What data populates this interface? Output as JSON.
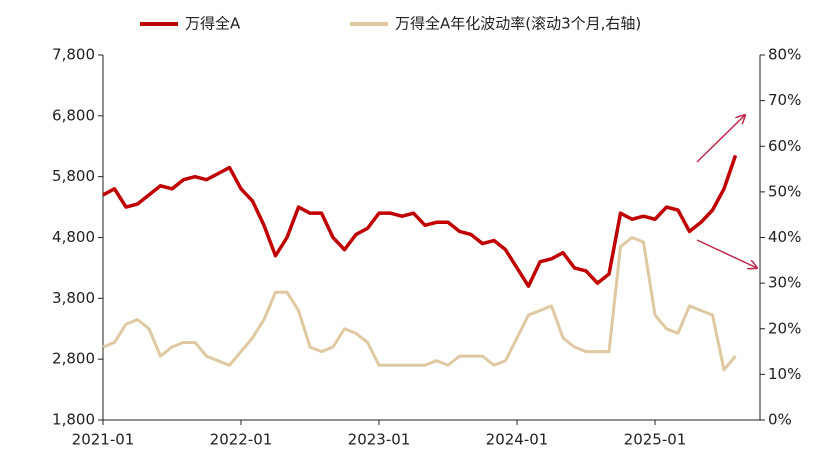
{
  "chart_data": {
    "type": "line",
    "x": [
      "2021-01",
      "2021-02",
      "2021-03",
      "2021-04",
      "2021-05",
      "2021-06",
      "2021-07",
      "2021-08",
      "2021-09",
      "2021-10",
      "2021-11",
      "2021-12",
      "2022-01",
      "2022-02",
      "2022-03",
      "2022-04",
      "2022-05",
      "2022-06",
      "2022-07",
      "2022-08",
      "2022-09",
      "2022-10",
      "2022-11",
      "2022-12",
      "2023-01",
      "2023-02",
      "2023-03",
      "2023-04",
      "2023-05",
      "2023-06",
      "2023-07",
      "2023-08",
      "2023-09",
      "2023-10",
      "2023-11",
      "2023-12",
      "2024-01",
      "2024-02",
      "2024-03",
      "2024-04",
      "2024-05",
      "2024-06",
      "2024-07",
      "2024-08",
      "2024-09",
      "2024-10",
      "2024-11",
      "2024-12",
      "2025-01",
      "2025-02",
      "2025-03",
      "2025-04",
      "2025-05",
      "2025-06",
      "2025-07",
      "2025-08"
    ],
    "series": [
      {
        "name": "万得全A",
        "color": "#c00000",
        "axis": "y",
        "values": [
          5500,
          5600,
          5300,
          5350,
          5500,
          5650,
          5600,
          5750,
          5800,
          5750,
          5850,
          5950,
          5600,
          5400,
          5000,
          4500,
          4800,
          5300,
          5200,
          5200,
          4800,
          4600,
          4850,
          4950,
          5200,
          5200,
          5150,
          5200,
          5000,
          5050,
          5050,
          4900,
          4850,
          4700,
          4750,
          4600,
          4300,
          4000,
          4400,
          4450,
          4550,
          4300,
          4250,
          4050,
          4200,
          5200,
          5100,
          5150,
          5100,
          5300,
          5250,
          4900,
          5050,
          5250,
          5600,
          6150
        ]
      },
      {
        "name": "万得全A年化波动率(滚动3个月,右轴)",
        "color": "#e0c9a0",
        "axis": "y2",
        "values": [
          16,
          17,
          21,
          22,
          20,
          14,
          16,
          17,
          17,
          14,
          13,
          12,
          15,
          18,
          22,
          28,
          28,
          24,
          16,
          15,
          16,
          20,
          19,
          17,
          12,
          12,
          12,
          12,
          12,
          13,
          12,
          14,
          14,
          14,
          12,
          13,
          18,
          23,
          24,
          25,
          18,
          16,
          15,
          15,
          15,
          38,
          40,
          39,
          23,
          20,
          19,
          25,
          24,
          23,
          11,
          14
        ]
      }
    ],
    "ylim": [
      1800,
      7800
    ],
    "yticks": [
      {
        "value": 1800,
        "label": "1,800"
      },
      {
        "value": 2800,
        "label": "2,800"
      },
      {
        "value": 3800,
        "label": "3,800"
      },
      {
        "value": 4800,
        "label": "4,800"
      },
      {
        "value": 5800,
        "label": "5,800"
      },
      {
        "value": 6800,
        "label": "6,800"
      },
      {
        "value": 7800,
        "label": "7,800"
      }
    ],
    "y2lim": [
      0,
      80
    ],
    "y2ticks": [
      {
        "value": 0,
        "label": "0%"
      },
      {
        "value": 10,
        "label": "10%"
      },
      {
        "value": 20,
        "label": "20%"
      },
      {
        "value": 30,
        "label": "30%"
      },
      {
        "value": 40,
        "label": "40%"
      },
      {
        "value": 50,
        "label": "50%"
      },
      {
        "value": 60,
        "label": "60%"
      },
      {
        "value": 70,
        "label": "70%"
      },
      {
        "value": 80,
        "label": "80%"
      }
    ],
    "legend": "top"
  }
}
